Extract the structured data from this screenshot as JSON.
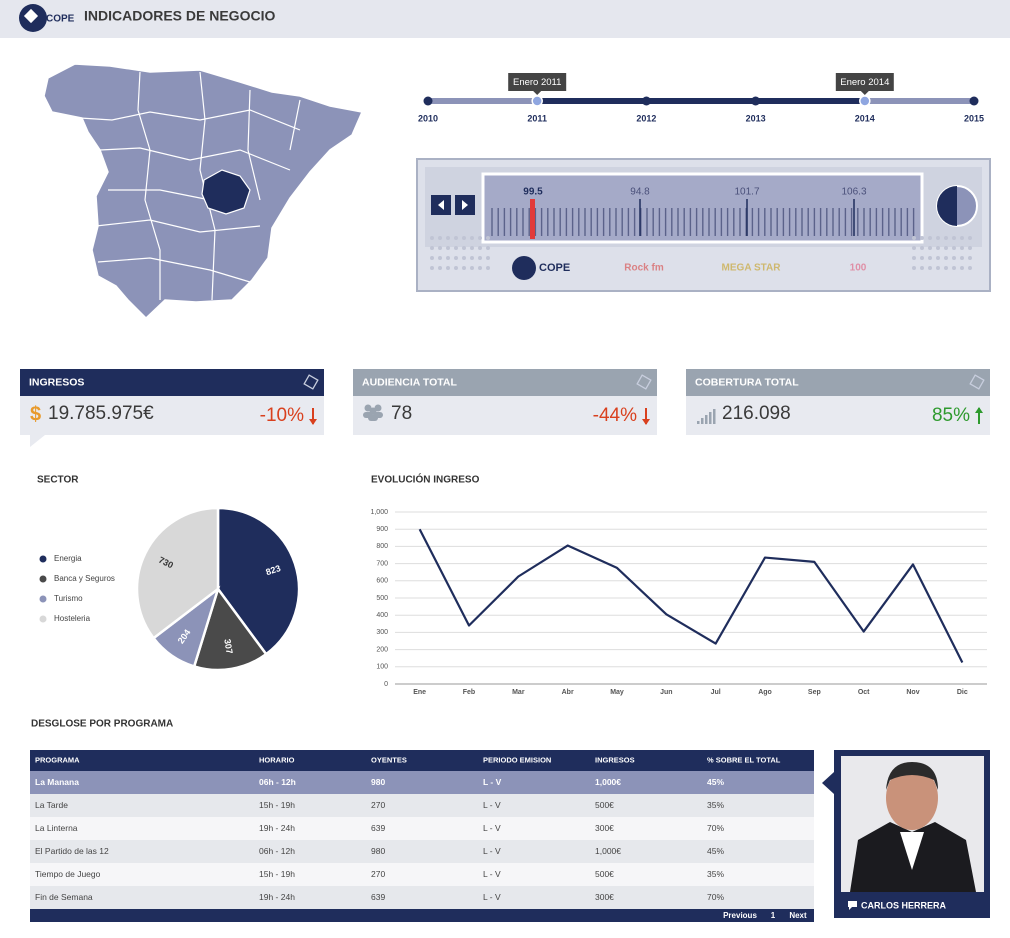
{
  "header": {
    "title": "INDICADORES DE NEGOCIO",
    "logo": "COPE"
  },
  "timeline": {
    "years": [
      2010,
      2011,
      2012,
      2013,
      2014,
      2015
    ],
    "selection": [
      {
        "value": 2011,
        "label": "Enero 2011"
      },
      {
        "value": 2014,
        "label": "Enero 2014"
      }
    ]
  },
  "radio": {
    "frequencies": [
      "99.5",
      "94.8",
      "101.7",
      "106.3"
    ],
    "stations": [
      "COPE",
      "Rock fm",
      "MEGA STAR",
      "100"
    ]
  },
  "kpis": [
    {
      "title": "INGRESOS",
      "currency": "$",
      "value": "19.785.975€",
      "change": "-10%"
    },
    {
      "title": "AUDIENCIA TOTAL",
      "value": "78",
      "change": "-44%"
    },
    {
      "title": "COBERTURA TOTAL",
      "value": "216.098",
      "change": "85%"
    }
  ],
  "chart_data": [
    {
      "type": "pie",
      "title": "SECTOR",
      "categories": [
        "Energia",
        "Banca y Seguros",
        "Turismo",
        "Hosteleria"
      ],
      "values": [
        823,
        307,
        204,
        730
      ],
      "colors": [
        "#1f2d5c",
        "#4a4a4a",
        "#8c93b8",
        "#d8d8d8"
      ],
      "legend": "left"
    },
    {
      "type": "line",
      "title": "EVOLUCIÓN INGRESO",
      "categories": [
        "Ene",
        "Feb",
        "Mar",
        "Abr",
        "May",
        "Jun",
        "Jul",
        "Ago",
        "Sep",
        "Oct",
        "Nov",
        "Dic"
      ],
      "values": [
        900,
        340,
        625,
        805,
        675,
        405,
        235,
        735,
        710,
        305,
        695,
        125
      ],
      "color": "#1f2d5c",
      "ylim": [
        0,
        1000
      ],
      "yticks": [
        0,
        100,
        200,
        300,
        400,
        500,
        600,
        700,
        800,
        900,
        {
          "value": 1000,
          "label": "1,000"
        }
      ],
      "grid": true
    }
  ],
  "table": {
    "title": "DESGLOSE POR PROGRAMA",
    "columns": [
      "PROGRAMA",
      "HORARIO",
      "OYENTES",
      "PERIODO EMISION",
      "INGRESOS",
      "% SOBRE EL TOTAL"
    ],
    "rows": [
      [
        "La Manana",
        "06h - 12h",
        "980",
        "L - V",
        "1,000€",
        "45%"
      ],
      [
        "La Tarde",
        "15h - 19h",
        "270",
        "L - V",
        "500€",
        "35%"
      ],
      [
        "La Linterna",
        "19h - 24h",
        "639",
        "L - V",
        "300€",
        "70%"
      ],
      [
        "El Partido de las 12",
        "06h - 12h",
        "980",
        "L - V",
        "1,000€",
        "45%"
      ],
      [
        "Tiempo de Juego",
        "15h - 19h",
        "270",
        "L - V",
        "500€",
        "35%"
      ],
      [
        "Fin de Semana",
        "19h - 24h",
        "639",
        "L - V",
        "300€",
        "70%"
      ]
    ],
    "pagination": [
      "Previous",
      "1",
      "Next"
    ]
  },
  "host": {
    "name": "CARLOS HERRERA"
  }
}
